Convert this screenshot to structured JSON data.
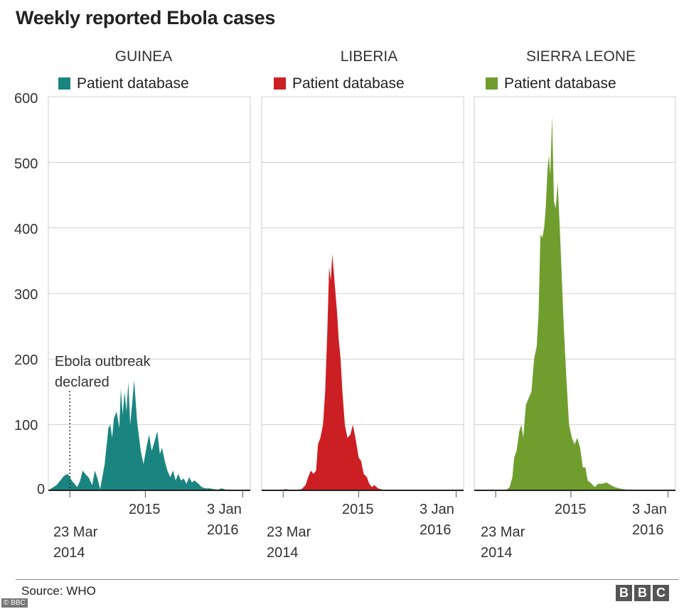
{
  "title": "Weekly reported Ebola cases",
  "source": "Source: WHO",
  "logo": "BBC",
  "corner_badge": "© BBC",
  "annotation": [
    "Ebola outbreak",
    "declared"
  ],
  "colors": {
    "GUINEA": "#1a8580",
    "LIBERIA": "#cc1f23",
    "SIERRA LEONE": "#6f9e2e",
    "grid": "#d0d0d0"
  },
  "chart_data": {
    "type": "area",
    "title": "Weekly reported Ebola cases",
    "yticks": [
      0,
      100,
      200,
      300,
      400,
      500,
      600
    ],
    "ylim": [
      0,
      600
    ],
    "xlim": [
      "2014-01-01",
      "2016-01-31"
    ],
    "xtick_labels": [
      [
        "23 Mar",
        "2014"
      ],
      [
        "2015"
      ],
      [
        "3 Jan",
        "2016"
      ]
    ],
    "xtick_dates": [
      "2014-03-23",
      "2015-01-01",
      "2016-01-03"
    ],
    "grid": true,
    "annotations": [
      {
        "text": "Ebola outbreak declared",
        "x": "2014-03-23"
      }
    ],
    "panels": [
      {
        "name": "GUINEA",
        "legend": "Patient database",
        "points": [
          [
            "2014-01-01",
            0
          ],
          [
            "2014-02-01",
            8
          ],
          [
            "2014-03-01",
            22
          ],
          [
            "2014-03-15",
            25
          ],
          [
            "2014-04-01",
            14
          ],
          [
            "2014-04-20",
            5
          ],
          [
            "2014-05-01",
            15
          ],
          [
            "2014-05-10",
            30
          ],
          [
            "2014-05-20",
            25
          ],
          [
            "2014-06-01",
            20
          ],
          [
            "2014-06-15",
            8
          ],
          [
            "2014-06-25",
            30
          ],
          [
            "2014-07-05",
            18
          ],
          [
            "2014-07-15",
            2
          ],
          [
            "2014-08-01",
            40
          ],
          [
            "2014-08-15",
            95
          ],
          [
            "2014-08-22",
            100
          ],
          [
            "2014-08-29",
            80
          ],
          [
            "2014-09-05",
            110
          ],
          [
            "2014-09-15",
            120
          ],
          [
            "2014-09-25",
            95
          ],
          [
            "2014-10-01",
            155
          ],
          [
            "2014-10-08",
            115
          ],
          [
            "2014-10-15",
            150
          ],
          [
            "2014-10-22",
            120
          ],
          [
            "2014-10-29",
            165
          ],
          [
            "2014-11-05",
            100
          ],
          [
            "2014-11-12",
            130
          ],
          [
            "2014-11-20",
            168
          ],
          [
            "2014-12-01",
            105
          ],
          [
            "2014-12-15",
            60
          ],
          [
            "2014-12-25",
            40
          ],
          [
            "2015-01-05",
            65
          ],
          [
            "2015-01-15",
            85
          ],
          [
            "2015-01-25",
            60
          ],
          [
            "2015-02-05",
            75
          ],
          [
            "2015-02-15",
            90
          ],
          [
            "2015-02-25",
            55
          ],
          [
            "2015-03-05",
            65
          ],
          [
            "2015-03-15",
            45
          ],
          [
            "2015-03-25",
            30
          ],
          [
            "2015-04-05",
            20
          ],
          [
            "2015-04-15",
            30
          ],
          [
            "2015-04-25",
            15
          ],
          [
            "2015-05-05",
            25
          ],
          [
            "2015-05-15",
            15
          ],
          [
            "2015-05-25",
            18
          ],
          [
            "2015-06-05",
            10
          ],
          [
            "2015-06-15",
            20
          ],
          [
            "2015-06-25",
            12
          ],
          [
            "2015-07-05",
            15
          ],
          [
            "2015-07-20",
            10
          ],
          [
            "2015-08-01",
            5
          ],
          [
            "2015-08-15",
            3
          ],
          [
            "2015-09-01",
            3
          ],
          [
            "2015-09-15",
            2
          ],
          [
            "2015-10-01",
            1
          ],
          [
            "2015-10-15",
            3
          ],
          [
            "2015-11-01",
            1
          ],
          [
            "2015-12-01",
            0
          ],
          [
            "2016-01-31",
            0
          ]
        ]
      },
      {
        "name": "LIBERIA",
        "legend": "Patient database",
        "points": [
          [
            "2014-01-01",
            0
          ],
          [
            "2014-03-15",
            0
          ],
          [
            "2014-04-01",
            2
          ],
          [
            "2014-04-15",
            1
          ],
          [
            "2014-05-01",
            0
          ],
          [
            "2014-06-01",
            2
          ],
          [
            "2014-06-15",
            8
          ],
          [
            "2014-06-25",
            20
          ],
          [
            "2014-07-05",
            30
          ],
          [
            "2014-07-15",
            25
          ],
          [
            "2014-07-25",
            30
          ],
          [
            "2014-08-01",
            70
          ],
          [
            "2014-08-10",
            80
          ],
          [
            "2014-08-20",
            100
          ],
          [
            "2014-08-28",
            150
          ],
          [
            "2014-09-05",
            240
          ],
          [
            "2014-09-12",
            340
          ],
          [
            "2014-09-18",
            320
          ],
          [
            "2014-09-24",
            360
          ],
          [
            "2014-09-30",
            330
          ],
          [
            "2014-10-06",
            300
          ],
          [
            "2014-10-12",
            270
          ],
          [
            "2014-10-18",
            230
          ],
          [
            "2014-10-25",
            200
          ],
          [
            "2014-11-01",
            150
          ],
          [
            "2014-11-10",
            100
          ],
          [
            "2014-11-20",
            80
          ],
          [
            "2014-12-01",
            85
          ],
          [
            "2014-12-10",
            100
          ],
          [
            "2014-12-20",
            80
          ],
          [
            "2015-01-01",
            50
          ],
          [
            "2015-01-10",
            45
          ],
          [
            "2015-01-20",
            25
          ],
          [
            "2015-02-01",
            20
          ],
          [
            "2015-02-10",
            10
          ],
          [
            "2015-02-20",
            5
          ],
          [
            "2015-03-01",
            8
          ],
          [
            "2015-03-15",
            3
          ],
          [
            "2015-04-01",
            1
          ],
          [
            "2015-05-01",
            0
          ],
          [
            "2016-01-31",
            0
          ]
        ]
      },
      {
        "name": "SIERRA LEONE",
        "legend": "Patient database",
        "points": [
          [
            "2014-01-01",
            0
          ],
          [
            "2014-05-01",
            0
          ],
          [
            "2014-05-15",
            5
          ],
          [
            "2014-05-25",
            20
          ],
          [
            "2014-06-01",
            50
          ],
          [
            "2014-06-10",
            60
          ],
          [
            "2014-06-20",
            90
          ],
          [
            "2014-06-28",
            100
          ],
          [
            "2014-07-05",
            80
          ],
          [
            "2014-07-15",
            130
          ],
          [
            "2014-07-25",
            140
          ],
          [
            "2014-08-05",
            150
          ],
          [
            "2014-08-15",
            200
          ],
          [
            "2014-08-25",
            220
          ],
          [
            "2014-09-01",
            270
          ],
          [
            "2014-09-08",
            390
          ],
          [
            "2014-09-15",
            385
          ],
          [
            "2014-09-22",
            400
          ],
          [
            "2014-09-28",
            430
          ],
          [
            "2014-10-05",
            490
          ],
          [
            "2014-10-10",
            510
          ],
          [
            "2014-10-15",
            480
          ],
          [
            "2014-10-22",
            570
          ],
          [
            "2014-10-29",
            440
          ],
          [
            "2014-11-05",
            430
          ],
          [
            "2014-11-12",
            470
          ],
          [
            "2014-11-20",
            400
          ],
          [
            "2014-11-28",
            320
          ],
          [
            "2014-12-05",
            250
          ],
          [
            "2014-12-15",
            170
          ],
          [
            "2014-12-25",
            100
          ],
          [
            "2015-01-05",
            80
          ],
          [
            "2015-01-15",
            70
          ],
          [
            "2015-01-25",
            80
          ],
          [
            "2015-02-05",
            65
          ],
          [
            "2015-02-15",
            35
          ],
          [
            "2015-02-25",
            35
          ],
          [
            "2015-03-05",
            15
          ],
          [
            "2015-03-15",
            12
          ],
          [
            "2015-04-01",
            5
          ],
          [
            "2015-04-15",
            10
          ],
          [
            "2015-05-01",
            10
          ],
          [
            "2015-05-15",
            12
          ],
          [
            "2015-06-01",
            8
          ],
          [
            "2015-06-15",
            5
          ],
          [
            "2015-07-01",
            3
          ],
          [
            "2015-08-01",
            1
          ],
          [
            "2015-09-01",
            0
          ],
          [
            "2016-01-31",
            0
          ]
        ]
      }
    ]
  }
}
